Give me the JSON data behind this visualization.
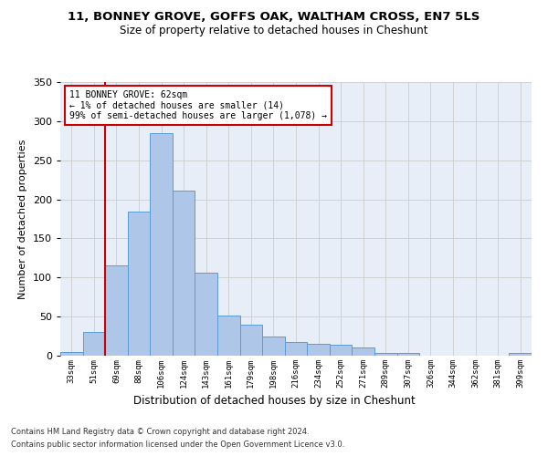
{
  "title1": "11, BONNEY GROVE, GOFFS OAK, WALTHAM CROSS, EN7 5LS",
  "title2": "Size of property relative to detached houses in Cheshunt",
  "xlabel": "Distribution of detached houses by size in Cheshunt",
  "ylabel": "Number of detached properties",
  "footer1": "Contains HM Land Registry data © Crown copyright and database right 2024.",
  "footer2": "Contains public sector information licensed under the Open Government Licence v3.0.",
  "annotation_title": "11 BONNEY GROVE: 62sqm",
  "annotation_line1": "← 1% of detached houses are smaller (14)",
  "annotation_line2": "99% of semi-detached houses are larger (1,078) →",
  "bar_color": "#aec6e8",
  "bar_edge_color": "#5b9bd5",
  "vline_color": "#cc0000",
  "annotation_box_color": "#cc0000",
  "background_color": "#e8eef8",
  "categories": [
    "33sqm",
    "51sqm",
    "69sqm",
    "88sqm",
    "106sqm",
    "124sqm",
    "143sqm",
    "161sqm",
    "179sqm",
    "198sqm",
    "216sqm",
    "234sqm",
    "252sqm",
    "271sqm",
    "289sqm",
    "307sqm",
    "326sqm",
    "344sqm",
    "362sqm",
    "381sqm",
    "399sqm"
  ],
  "bar_values": [
    5,
    30,
    116,
    184,
    285,
    211,
    106,
    51,
    40,
    24,
    18,
    15,
    14,
    10,
    4,
    3,
    0,
    0,
    0,
    0,
    4
  ],
  "ylim": [
    0,
    350
  ],
  "yticks": [
    0,
    50,
    100,
    150,
    200,
    250,
    300,
    350
  ],
  "vline_x_idx": 1.5
}
